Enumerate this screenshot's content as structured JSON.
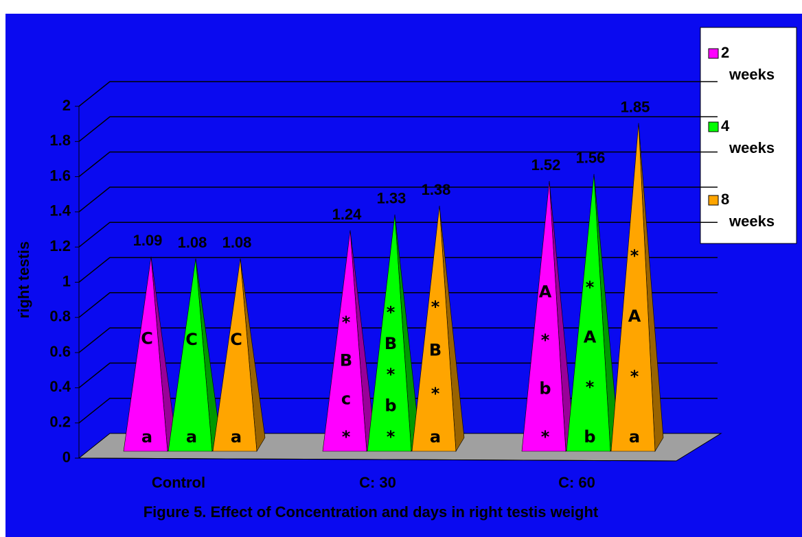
{
  "chart_data": {
    "type": "pyramid",
    "title": "Figure 5. Effect of Concentration and days in right testis weight",
    "y_label": "right testis",
    "categories": [
      "Control",
      "C: 30",
      "C: 60"
    ],
    "series": [
      {
        "name": "2 weeks",
        "color": "#ff00ff",
        "values": [
          1.09,
          1.24,
          1.52
        ],
        "annotations": [
          [
            "C",
            "a"
          ],
          [
            "*",
            "B",
            "c",
            "*"
          ],
          [
            "A",
            "*",
            "b",
            "*"
          ]
        ]
      },
      {
        "name": "4 weeks",
        "color": "#00ff00",
        "values": [
          1.08,
          1.33,
          1.56
        ],
        "annotations": [
          [
            "C",
            "a"
          ],
          [
            "*",
            "B",
            "*",
            "b",
            "*"
          ],
          [
            "*",
            "A",
            "*",
            "b"
          ]
        ]
      },
      {
        "name": "8 weeks",
        "color": "#ffa500",
        "values": [
          1.08,
          1.38,
          1.85
        ],
        "annotations": [
          [
            "C",
            "a"
          ],
          [
            "*",
            "B",
            "*",
            "a"
          ],
          [
            "*",
            "A",
            "*",
            "a"
          ]
        ]
      }
    ],
    "ylim": [
      0,
      2
    ],
    "yticks": [
      0,
      0.2,
      0.4,
      0.6,
      0.8,
      1,
      1.2,
      1.4,
      1.6,
      1.8,
      2
    ],
    "grid": true,
    "legend": "right"
  }
}
